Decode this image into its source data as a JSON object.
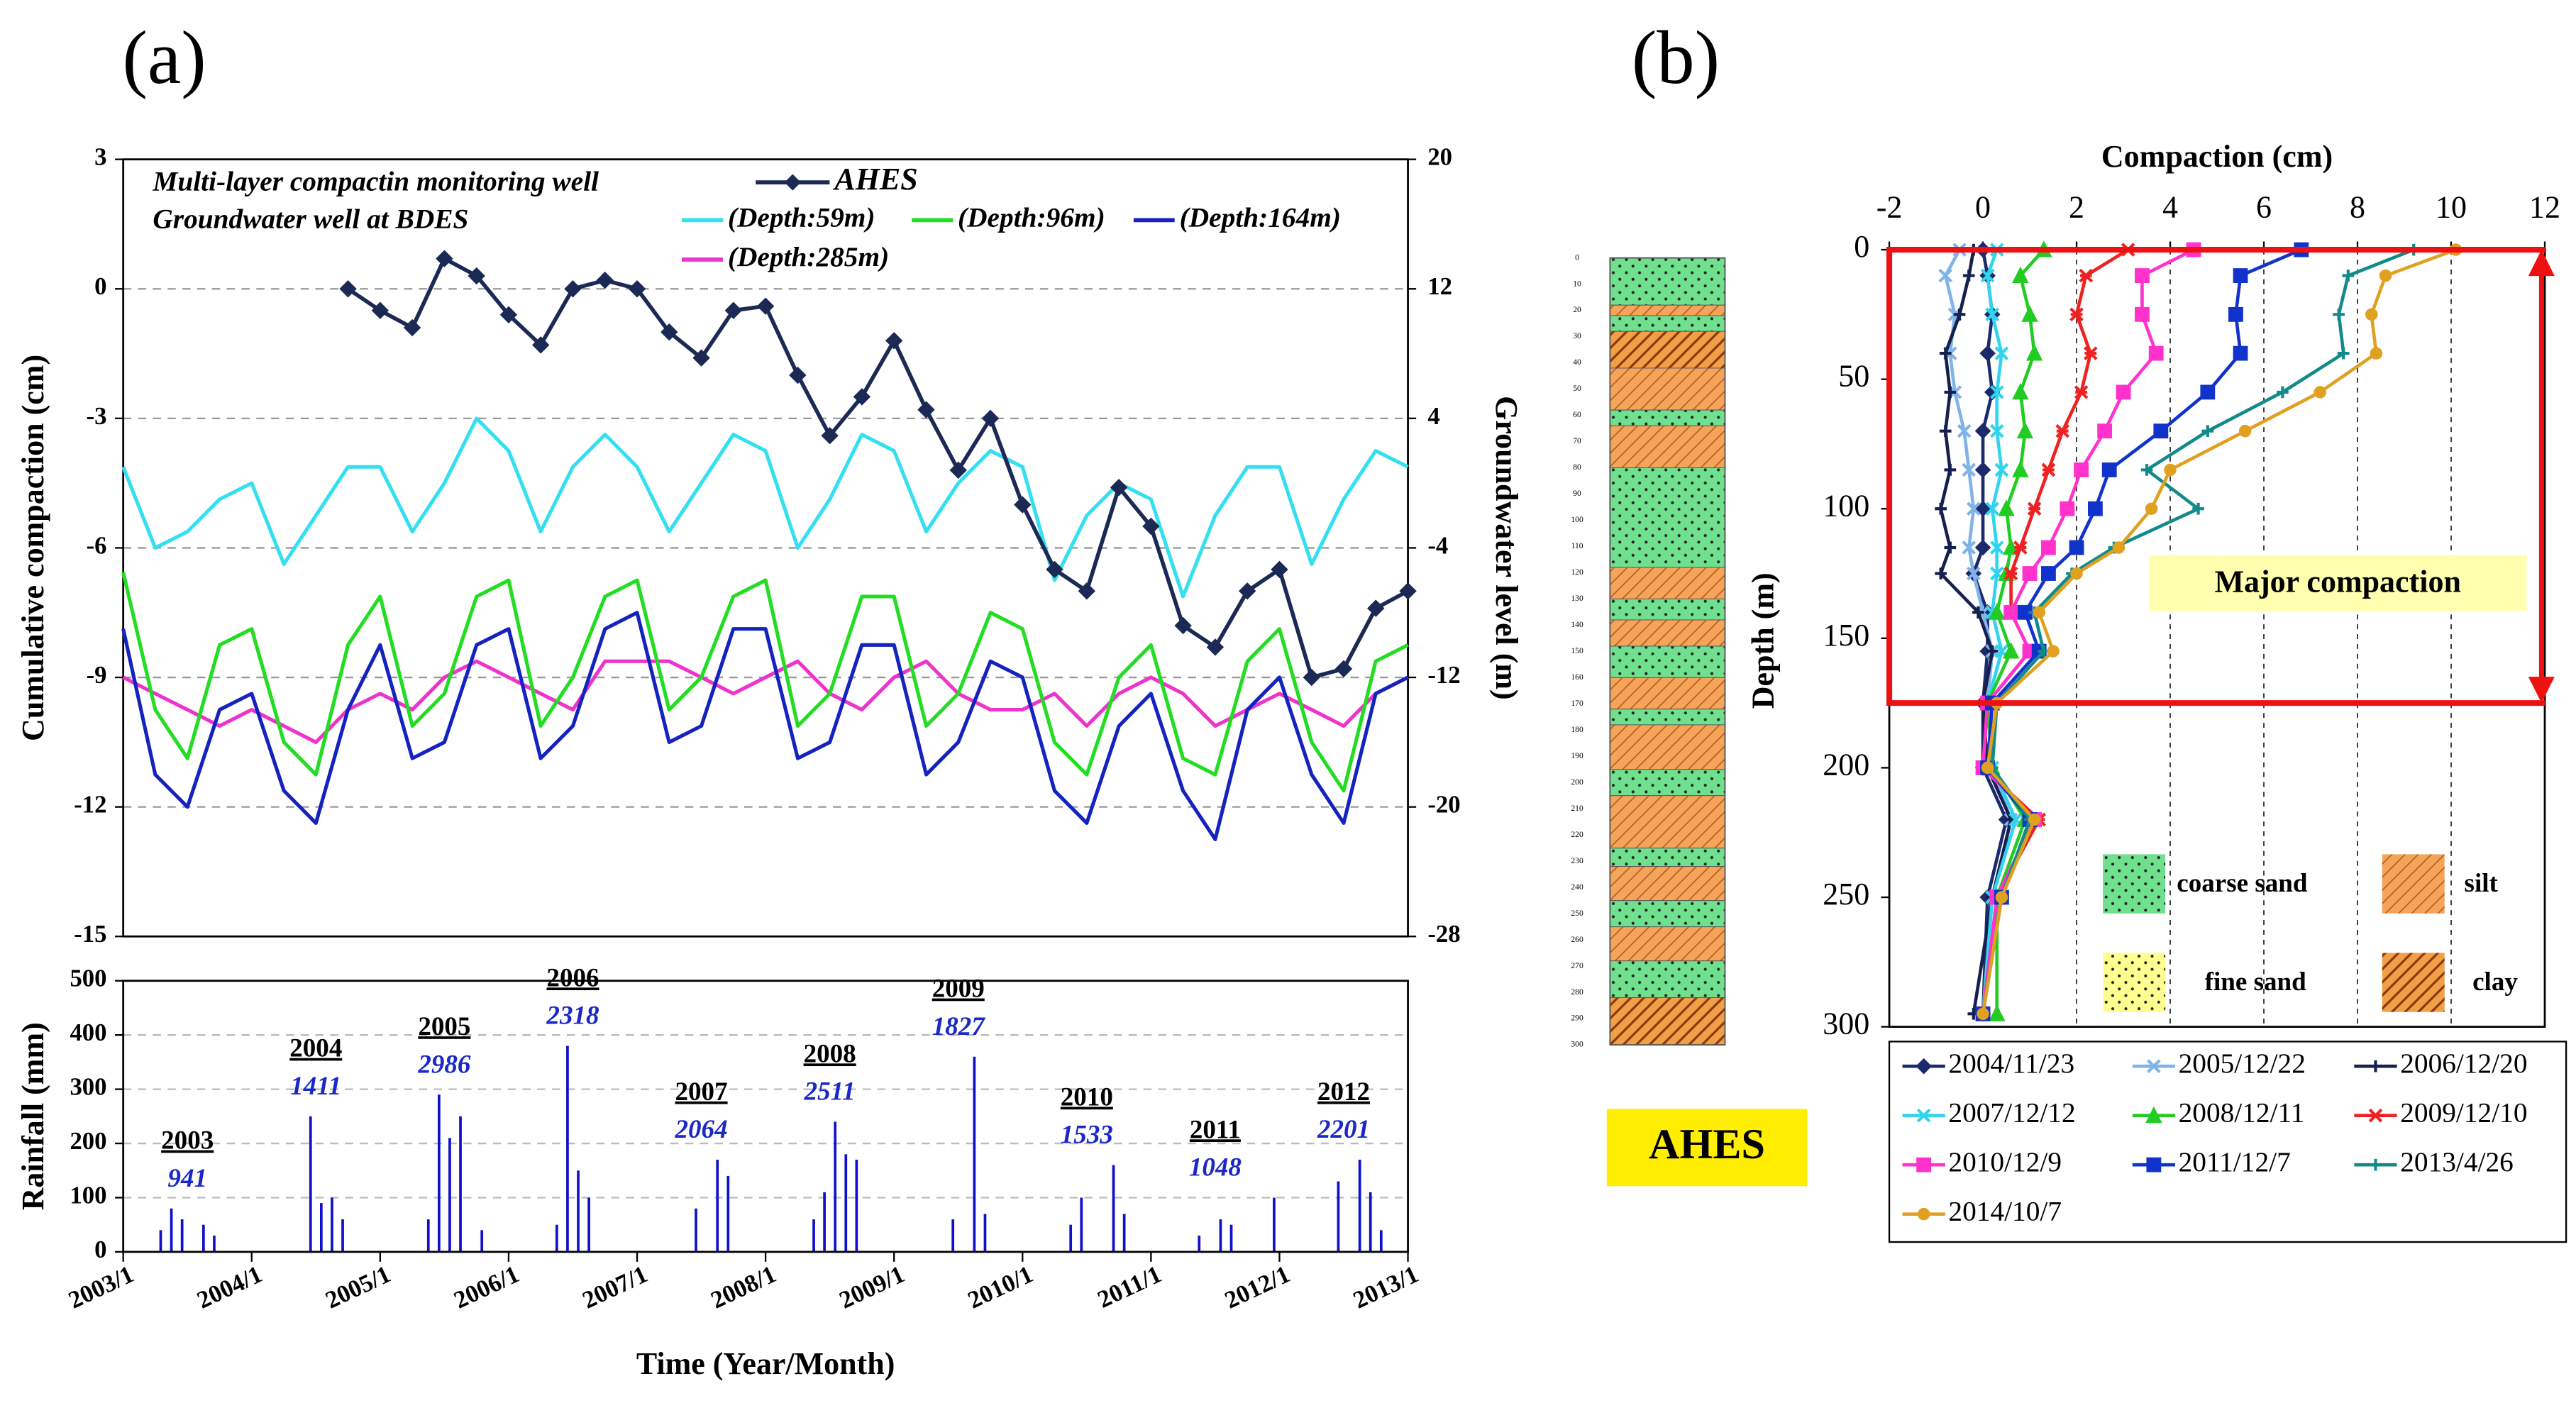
{
  "panels": [
    "(a)",
    "(b)"
  ],
  "chart_data": [
    {
      "type": "line",
      "annotations": [
        "Multi-layer compactin monitoring well",
        "Groundwater well at BDES"
      ],
      "y_label": "Cumulative compaction (cm)",
      "y2_label": "Groundwater level (m)",
      "xlim": [
        "2003/1",
        "2013/1"
      ],
      "ylim": [
        -15,
        3
      ],
      "yticks": [
        -15,
        -12,
        -9,
        -6,
        -3,
        0,
        3
      ],
      "y2lim": [
        -28,
        20
      ],
      "y2ticks": [
        -28,
        -20,
        -12,
        -4,
        4,
        12,
        20
      ],
      "grid": true,
      "x": [
        "2003/1",
        "2003/4",
        "2003/7",
        "2003/10",
        "2004/1",
        "2004/4",
        "2004/7",
        "2004/10",
        "2005/1",
        "2005/4",
        "2005/7",
        "2005/10",
        "2006/1",
        "2006/4",
        "2006/7",
        "2006/10",
        "2007/1",
        "2007/4",
        "2007/7",
        "2007/10",
        "2008/1",
        "2008/4",
        "2008/7",
        "2008/10",
        "2009/1",
        "2009/4",
        "2009/7",
        "2009/10",
        "2010/1",
        "2010/4",
        "2010/7",
        "2010/10",
        "2011/1",
        "2011/4",
        "2011/7",
        "2011/10",
        "2012/1",
        "2012/4",
        "2012/7",
        "2012/10",
        "2013/1"
      ],
      "series": [
        {
          "name": "AHES",
          "color": "#1b2a55",
          "marker": "diamond",
          "x": [
            "2004/10",
            "2005/1",
            "2005/4",
            "2005/7",
            "2005/10",
            "2006/1",
            "2006/4",
            "2006/7",
            "2006/10",
            "2007/1",
            "2007/4",
            "2007/7",
            "2007/10",
            "2008/1",
            "2008/4",
            "2008/7",
            "2008/10",
            "2009/1",
            "2009/4",
            "2009/7",
            "2009/10",
            "2010/1",
            "2010/4",
            "2010/7",
            "2010/10",
            "2011/1",
            "2011/4",
            "2011/7",
            "2011/10",
            "2012/1",
            "2012/4",
            "2012/7",
            "2012/10",
            "2013/1"
          ],
          "values": [
            0,
            -0.5,
            -0.9,
            0.7,
            0.3,
            -0.6,
            -1.3,
            0.0,
            0.2,
            0.0,
            -1.0,
            -1.6,
            -0.5,
            -0.4,
            -2.0,
            -3.4,
            -2.5,
            -1.2,
            -2.8,
            -4.2,
            -3.0,
            -5.0,
            -6.5,
            -7.0,
            -4.6,
            -5.5,
            -7.8,
            -8.3,
            -7.0,
            -6.5,
            -9.0,
            -8.8,
            -7.4,
            -7.0
          ]
        },
        {
          "name": "(Depth:59m)",
          "color": "#33dff0",
          "axis": "y2",
          "values": [
            1,
            -4,
            -3,
            -1,
            0,
            -5,
            -2,
            1,
            1,
            -3,
            0,
            4,
            2,
            -3,
            1,
            3,
            1,
            -3,
            0,
            3,
            2,
            -4,
            -1,
            3,
            2,
            -3,
            0,
            2,
            1,
            -6,
            -2,
            0,
            -1,
            -7,
            -2,
            1,
            1,
            -5,
            -1,
            2,
            1
          ]
        },
        {
          "name": "(Depth:96m)",
          "color": "#22dd22",
          "axis": "y2",
          "values": [
            -5.5,
            -14,
            -17,
            -10,
            -9,
            -16,
            -18,
            -10,
            -7,
            -15,
            -13,
            -7,
            -6,
            -15,
            -12,
            -7,
            -6,
            -14,
            -12,
            -7,
            -6,
            -15,
            -13,
            -7,
            -7,
            -15,
            -13,
            -8,
            -9,
            -16,
            -18,
            -12,
            -10,
            -17,
            -18,
            -11,
            -9,
            -16,
            -19,
            -11,
            -10
          ]
        },
        {
          "name": "(Depth:164m)",
          "color": "#1422c0",
          "axis": "y2",
          "values": [
            -9,
            -18,
            -20,
            -14,
            -13,
            -19,
            -21,
            -14,
            -10,
            -17,
            -16,
            -10,
            -9,
            -17,
            -15,
            -9,
            -8,
            -16,
            -15,
            -9,
            -9,
            -17,
            -16,
            -10,
            -10,
            -18,
            -16,
            -11,
            -12,
            -19,
            -21,
            -15,
            -13,
            -19,
            -22,
            -14,
            -12,
            -18,
            -21,
            -13,
            -12
          ]
        },
        {
          "name": "(Depth:285m)",
          "color": "#ee33cc",
          "axis": "y2",
          "values": [
            -12,
            -13,
            -14,
            -15,
            -14,
            -15,
            -16,
            -14,
            -13,
            -14,
            -12,
            -11,
            -12,
            -13,
            -14,
            -11,
            -11,
            -11,
            -12,
            -13,
            -12,
            -11,
            -13,
            -14,
            -12,
            -11,
            -13,
            -14,
            -14,
            -13,
            -15,
            -13,
            -12,
            -13,
            -15,
            -14,
            -13,
            -14,
            -15,
            -13,
            -12
          ]
        }
      ]
    },
    {
      "type": "bar",
      "y_label": "Rainfall (mm)",
      "x_label": "Time (Year/Month)",
      "xlim": [
        "2003/1",
        "2013/1"
      ],
      "xticks": [
        "2003/1",
        "2004/1",
        "2005/1",
        "2006/1",
        "2007/1",
        "2008/1",
        "2009/1",
        "2010/1",
        "2011/1",
        "2012/1",
        "2013/1"
      ],
      "ylim": [
        0,
        500
      ],
      "yticks": [
        0,
        100,
        200,
        300,
        400,
        500
      ],
      "grid": true,
      "color": "#1010cc",
      "x": [
        "2003/4",
        "2003/5",
        "2003/6",
        "2003/8",
        "2003/9",
        "2004/6",
        "2004/7",
        "2004/8",
        "2004/9",
        "2005/5",
        "2005/6",
        "2005/7",
        "2005/8",
        "2005/10",
        "2006/5",
        "2006/6",
        "2006/7",
        "2006/8",
        "2007/6",
        "2007/8",
        "2007/9",
        "2008/5",
        "2008/6",
        "2008/7",
        "2008/8",
        "2008/9",
        "2009/6",
        "2009/8",
        "2009/9",
        "2010/5",
        "2010/6",
        "2010/9",
        "2010/10",
        "2011/5",
        "2011/7",
        "2011/8",
        "2011/12",
        "2012/6",
        "2012/8",
        "2012/9",
        "2012/10"
      ],
      "values": [
        40,
        80,
        60,
        50,
        30,
        250,
        90,
        100,
        60,
        60,
        290,
        210,
        250,
        40,
        50,
        380,
        150,
        100,
        80,
        170,
        140,
        60,
        110,
        240,
        180,
        170,
        60,
        360,
        70,
        50,
        100,
        160,
        70,
        30,
        60,
        50,
        100,
        130,
        170,
        110,
        40
      ],
      "annual_totals": [
        {
          "year": "2003",
          "total": 941
        },
        {
          "year": "2004",
          "total": 1411
        },
        {
          "year": "2005",
          "total": 2986
        },
        {
          "year": "2006",
          "total": 2318
        },
        {
          "year": "2007",
          "total": 2064
        },
        {
          "year": "2008",
          "total": 2511
        },
        {
          "year": "2009",
          "total": 1827
        },
        {
          "year": "2010",
          "total": 1533
        },
        {
          "year": "2011",
          "total": 1048
        },
        {
          "year": "2012",
          "total": 2201
        }
      ]
    },
    {
      "type": "profile",
      "x_label": "Compaction (cm)",
      "y_label": "Depth (m)",
      "xlim": [
        -2,
        12
      ],
      "xticks": [
        -2,
        0,
        2,
        4,
        6,
        8,
        10,
        12
      ],
      "ylim": [
        0,
        300
      ],
      "yticks": [
        0,
        50,
        100,
        150,
        200,
        250,
        300
      ],
      "grid": true,
      "annotation": "Major compaction",
      "major_zone": [
        0,
        175
      ],
      "depths": [
        0,
        10,
        25,
        40,
        55,
        70,
        85,
        100,
        115,
        125,
        140,
        155,
        175,
        200,
        220,
        250,
        295
      ],
      "series": [
        {
          "name": "2004/11/23",
          "color": "#1b2a6b",
          "marker": "diamond",
          "values": [
            0,
            0.1,
            0.2,
            0.1,
            0.2,
            0,
            0,
            0,
            0,
            -0.2,
            0.1,
            0.1,
            0,
            0,
            0.5,
            0.1,
            0
          ]
        },
        {
          "name": "2005/12/22",
          "color": "#80b4e8",
          "marker": "x",
          "values": [
            -0.5,
            -0.8,
            -0.6,
            -0.7,
            -0.6,
            -0.4,
            -0.3,
            -0.2,
            -0.3,
            -0.2,
            0,
            0.2,
            0.1,
            0.2,
            0.6,
            0.2,
            0
          ]
        },
        {
          "name": "2006/12/20",
          "color": "#16204f",
          "marker": "plus",
          "values": [
            -0.2,
            -0.3,
            -0.5,
            -0.8,
            -0.7,
            -0.8,
            -0.7,
            -0.9,
            -0.7,
            -0.9,
            -0.1,
            0.2,
            0,
            0.1,
            0.6,
            0.2,
            -0.2
          ]
        },
        {
          "name": "2007/12/12",
          "color": "#30d4ee",
          "marker": "x",
          "values": [
            0.3,
            0.1,
            0.2,
            0.4,
            0.3,
            0.3,
            0.4,
            0.2,
            0.3,
            0.3,
            0.2,
            0.4,
            0.1,
            0.2,
            0.7,
            0.2,
            0
          ]
        },
        {
          "name": "2008/12/11",
          "color": "#22cc22",
          "marker": "triangle",
          "values": [
            1.3,
            0.8,
            1.0,
            1.1,
            0.8,
            0.9,
            0.8,
            0.5,
            0.6,
            0.5,
            0.3,
            0.6,
            0.1,
            0.2,
            0.9,
            0.3,
            0.3
          ]
        },
        {
          "name": "2009/12/10",
          "color": "#ee2222",
          "marker": "star",
          "values": [
            3.1,
            2.2,
            2.0,
            2.3,
            2.1,
            1.7,
            1.4,
            1.1,
            0.8,
            0.6,
            0.6,
            1.0,
            0.1,
            0,
            1.2,
            0.3,
            0
          ]
        },
        {
          "name": "2010/12/9",
          "color": "#ff33cc",
          "marker": "square",
          "values": [
            4.5,
            3.4,
            3.4,
            3.7,
            3.0,
            2.6,
            2.1,
            1.8,
            1.4,
            1.0,
            0.6,
            1.0,
            0.1,
            0,
            1.1,
            0.3,
            0
          ]
        },
        {
          "name": "2011/12/7",
          "color": "#1133cc",
          "marker": "square",
          "values": [
            6.8,
            5.5,
            5.4,
            5.5,
            4.8,
            3.8,
            2.7,
            2.4,
            2.0,
            1.4,
            0.9,
            1.2,
            0.2,
            0.1,
            1.0,
            0.4,
            0
          ]
        },
        {
          "name": "2013/4/26",
          "color": "#138a8a",
          "marker": "plus",
          "values": [
            9.2,
            7.8,
            7.6,
            7.7,
            6.4,
            4.8,
            3.5,
            4.6,
            2.8,
            1.9,
            1.1,
            1.3,
            0.3,
            0.2,
            1.0,
            0.4,
            0
          ]
        },
        {
          "name": "2014/10/7",
          "color": "#e0a020",
          "marker": "circle",
          "values": [
            10.1,
            8.6,
            8.3,
            8.4,
            7.2,
            5.6,
            4.0,
            3.6,
            2.9,
            2.0,
            1.2,
            1.5,
            0.3,
            0.1,
            1.1,
            0.4,
            0
          ]
        }
      ]
    },
    {
      "type": "column",
      "label": "AHES",
      "ylim": [
        0,
        300
      ],
      "ticks": [
        0,
        10,
        20,
        30,
        40,
        50,
        60,
        70,
        80,
        90,
        100,
        110,
        120,
        130,
        140,
        150,
        160,
        170,
        180,
        190,
        200,
        210,
        220,
        230,
        240,
        250,
        260,
        270,
        280,
        290,
        300
      ],
      "materials": [
        {
          "name": "coarse sand",
          "color": "#6ee08e"
        },
        {
          "name": "silt",
          "color": "#f6a45a"
        },
        {
          "name": "fine sand",
          "color": "#ffff90"
        },
        {
          "name": "clay",
          "color": "#f2a048"
        }
      ],
      "layers": [
        {
          "from": 0,
          "to": 18,
          "kind": 0
        },
        {
          "from": 18,
          "to": 22,
          "kind": 1
        },
        {
          "from": 22,
          "to": 28,
          "kind": 0
        },
        {
          "from": 28,
          "to": 42,
          "kind": 3
        },
        {
          "from": 42,
          "to": 58,
          "kind": 1
        },
        {
          "from": 58,
          "to": 64,
          "kind": 0
        },
        {
          "from": 64,
          "to": 80,
          "kind": 1
        },
        {
          "from": 80,
          "to": 118,
          "kind": 0
        },
        {
          "from": 118,
          "to": 130,
          "kind": 1
        },
        {
          "from": 130,
          "to": 138,
          "kind": 0
        },
        {
          "from": 138,
          "to": 148,
          "kind": 1
        },
        {
          "from": 148,
          "to": 160,
          "kind": 0
        },
        {
          "from": 160,
          "to": 172,
          "kind": 1
        },
        {
          "from": 172,
          "to": 178,
          "kind": 0
        },
        {
          "from": 178,
          "to": 195,
          "kind": 1
        },
        {
          "from": 195,
          "to": 205,
          "kind": 0
        },
        {
          "from": 205,
          "to": 225,
          "kind": 1
        },
        {
          "from": 225,
          "to": 232,
          "kind": 0
        },
        {
          "from": 232,
          "to": 245,
          "kind": 1
        },
        {
          "from": 245,
          "to": 255,
          "kind": 0
        },
        {
          "from": 255,
          "to": 268,
          "kind": 1
        },
        {
          "from": 268,
          "to": 282,
          "kind": 0
        },
        {
          "from": 282,
          "to": 300,
          "kind": 3
        }
      ]
    }
  ]
}
